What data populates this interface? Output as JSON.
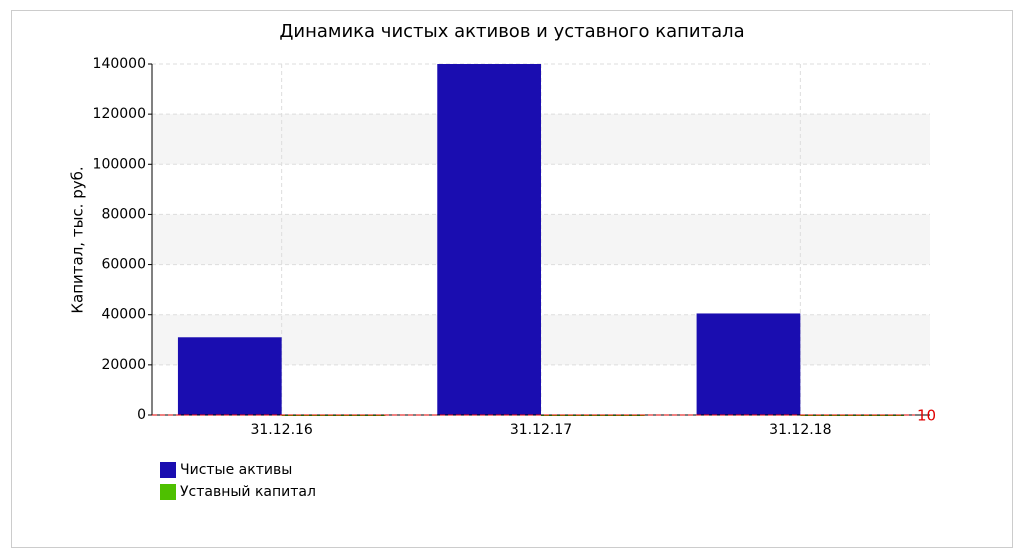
{
  "chart_data": {
    "type": "bar",
    "title": "Динамика чистых активов и уставного капитала",
    "y_label": "Капитал, тыс. руб.",
    "categories": [
      "31.12.16",
      "31.12.17",
      "31.12.18"
    ],
    "series": [
      {
        "name": "Чистые активы",
        "color": "#1a0db0",
        "values": [
          31000,
          140000,
          40500
        ]
      },
      {
        "name": "Уставный капитал",
        "color": "#4ec000",
        "values": [
          10,
          10,
          10
        ]
      }
    ],
    "reference_line": {
      "value": 10,
      "color": "#e00000"
    },
    "ylim": [
      0,
      140000
    ],
    "yticks": [
      0,
      20000,
      40000,
      60000,
      80000,
      100000,
      120000,
      140000
    ],
    "grid": true
  }
}
